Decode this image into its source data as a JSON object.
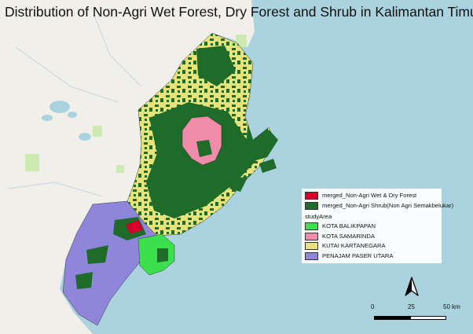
{
  "title": "Distribution of Non-Agri Wet Forest, Dry Forest and Shrub in Kalimantan Timur",
  "colors": {
    "sea": "#aad3df",
    "land": "#f1efe9",
    "wet_dry_forest": "#d6002a",
    "shrub": "#1e6b2a",
    "kota_balikpapan": "#3be04c",
    "kota_samarinda": "#f08caa",
    "kutai_kartanegara": "#e6e27c",
    "penajam_paser_utara": "#8f86dc"
  },
  "legend": {
    "layers": [
      {
        "label": "merged_Non-Agri Wet & Dry Forest",
        "color": "#d6002a"
      },
      {
        "label": "merged_Non-Agri Shrub(Non Agri Semakbelukar)",
        "color": "#1e6b2a"
      }
    ],
    "group_title": "studyArea",
    "areas": [
      {
        "label": "KOTA BALIKPAPAN",
        "color": "#3be04c"
      },
      {
        "label": "KOTA SAMARINDA",
        "color": "#f08caa"
      },
      {
        "label": "KUTAI KARTANEGARA",
        "color": "#e6e27c"
      },
      {
        "label": "PENAJAM PASER UTARA",
        "color": "#8f86dc"
      }
    ]
  },
  "scale": {
    "labels": [
      "0",
      "25",
      "50 km"
    ]
  },
  "north_arrow": "north-arrow-icon"
}
